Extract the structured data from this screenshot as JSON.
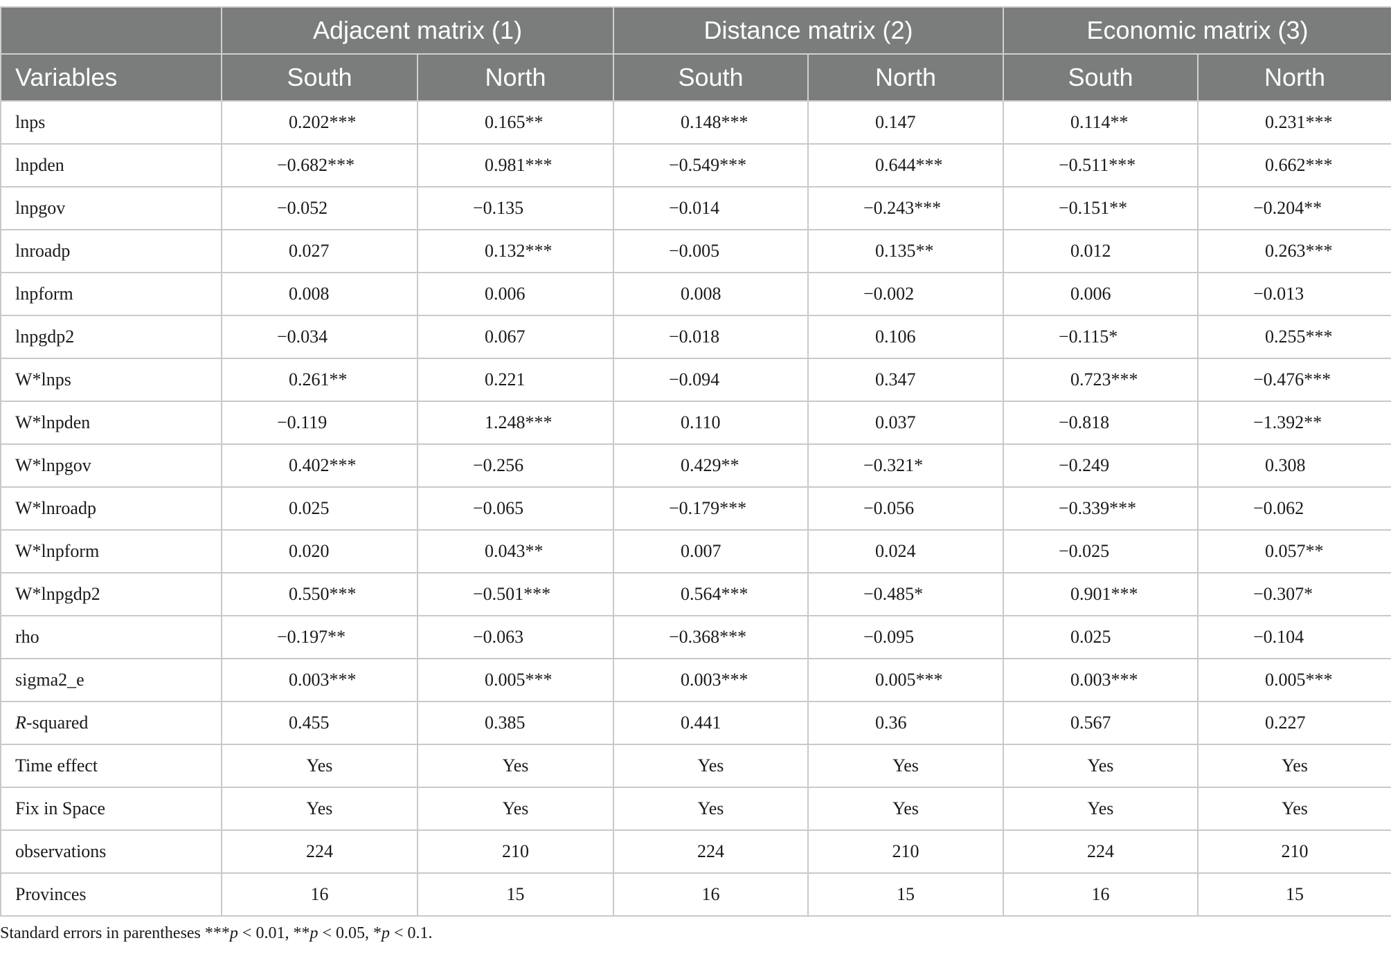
{
  "table": {
    "group_headers": [
      "Adjacent matrix (1)",
      "Distance matrix (2)",
      "Economic matrix (3)"
    ],
    "variables_header": "Variables",
    "sub_headers": [
      "South",
      "North",
      "South",
      "North",
      "South",
      "North"
    ],
    "rows": [
      {
        "label": "lnps",
        "cells": [
          "0.202***",
          "0.165**",
          "0.148***",
          "0.147",
          "0.114**",
          "0.231***"
        ]
      },
      {
        "label": "lnpden",
        "cells": [
          "−0.682***",
          "0.981***",
          "−0.549***",
          "0.644***",
          "−0.511***",
          "0.662***"
        ]
      },
      {
        "label": "lnpgov",
        "cells": [
          "−0.052",
          "−0.135",
          "−0.014",
          "−0.243***",
          "−0.151**",
          "−0.204**"
        ]
      },
      {
        "label": "lnroadp",
        "cells": [
          "0.027",
          "0.132***",
          "−0.005",
          "0.135**",
          "0.012",
          "0.263***"
        ]
      },
      {
        "label": "lnpform",
        "cells": [
          "0.008",
          "0.006",
          "0.008",
          "−0.002",
          "0.006",
          "−0.013"
        ]
      },
      {
        "label": "lnpgdp2",
        "cells": [
          "−0.034",
          "0.067",
          "−0.018",
          "0.106",
          "−0.115*",
          "0.255***"
        ]
      },
      {
        "label": "W*lnps",
        "cells": [
          "0.261**",
          "0.221",
          "−0.094",
          "0.347",
          "0.723***",
          "−0.476***"
        ]
      },
      {
        "label": "W*lnpden",
        "cells": [
          "−0.119",
          "1.248***",
          "0.110",
          "0.037",
          "−0.818",
          "−1.392**"
        ]
      },
      {
        "label": "W*lnpgov",
        "cells": [
          "0.402***",
          "−0.256",
          "0.429**",
          "−0.321*",
          "−0.249",
          "0.308"
        ]
      },
      {
        "label": "W*lnroadp",
        "cells": [
          "0.025",
          "−0.065",
          "−0.179***",
          "−0.056",
          "−0.339***",
          "−0.062"
        ]
      },
      {
        "label": "W*lnpform",
        "cells": [
          "0.020",
          "0.043**",
          "0.007",
          "0.024",
          "−0.025",
          "0.057**"
        ]
      },
      {
        "label": "W*lnpgdp2",
        "cells": [
          "0.550***",
          "−0.501***",
          "0.564***",
          "−0.485*",
          "0.901***",
          "−0.307*"
        ]
      },
      {
        "label": "rho",
        "cells": [
          "−0.197**",
          "−0.063",
          "−0.368***",
          "−0.095",
          "0.025",
          "−0.104"
        ]
      },
      {
        "label": "sigma2_e",
        "cells": [
          "0.003***",
          "0.005***",
          "0.003***",
          "0.005***",
          "0.003***",
          "0.005***"
        ]
      },
      {
        "label_italic": "R",
        "label_rest": "-squared",
        "cells": [
          "0.455",
          "0.385",
          "0.441",
          "0.36",
          "0.567",
          "0.227"
        ]
      },
      {
        "label": "Time effect",
        "center": true,
        "cells": [
          "Yes",
          "Yes",
          "Yes",
          "Yes",
          "Yes",
          "Yes"
        ]
      },
      {
        "label": "Fix in Space",
        "center": true,
        "cells": [
          "Yes",
          "Yes",
          "Yes",
          "Yes",
          "Yes",
          "Yes"
        ]
      },
      {
        "label": "observations",
        "center": true,
        "cells": [
          "224",
          "210",
          "224",
          "210",
          "224",
          "210"
        ]
      },
      {
        "label": "Provinces",
        "center": true,
        "cells": [
          "16",
          "15",
          "16",
          "15",
          "16",
          "15"
        ]
      }
    ]
  },
  "footnote": {
    "prefix": "Standard errors in parentheses ***",
    "p1": "p",
    "mid1": " < 0.01, **",
    "p2": "p",
    "mid2": " < 0.05, *",
    "p3": "p",
    "suffix": " < 0.1."
  }
}
